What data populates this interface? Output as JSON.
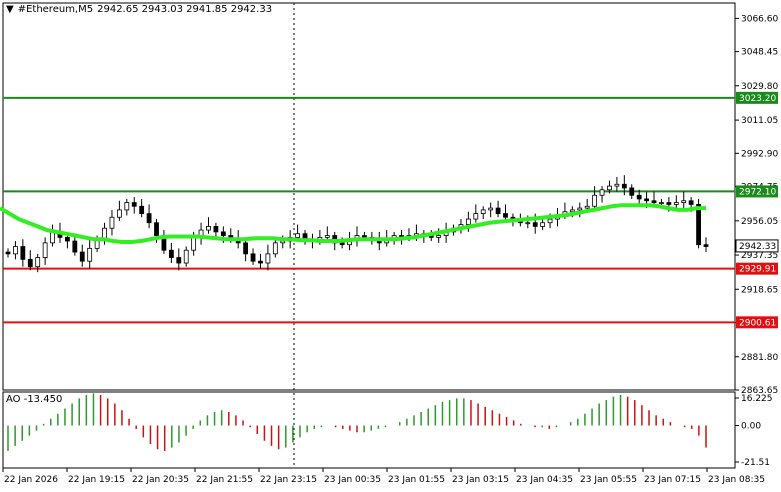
{
  "header": {
    "symbol": "#Ethereum,M5",
    "ohlc": "2942.65 2943.03 2941.85 2942.33",
    "menu_glyph": "▼"
  },
  "ao_panel": {
    "label": "AO -13.450"
  },
  "colors": {
    "background": "#ffffff",
    "grid": "#000000",
    "candle": "#000000",
    "ma_line": "#33ee22",
    "green_level": "#1a8a1a",
    "red_level": "#e01010",
    "ao_up": "#2c9a2c",
    "ao_down": "#cc1111",
    "price_tag_text": "#ffffff",
    "current_tag": "#ffffff"
  },
  "chart_data": {
    "type": "candlestick",
    "price_axis": {
      "ticks": [
        "3066.60",
        "3048.45",
        "3029.80",
        "3011.05",
        "2992.90",
        "2974.75",
        "2956.05",
        "2937.35",
        "2918.65",
        "2900.50",
        "2881.80",
        "2863.65"
      ],
      "range": [
        2863.65,
        3075
      ]
    },
    "levels": [
      {
        "value": 3023.2,
        "label": "3023.20",
        "color": "green"
      },
      {
        "value": 2972.1,
        "label": "2972.10",
        "color": "green"
      },
      {
        "value": 2929.91,
        "label": "2929.91",
        "color": "red"
      },
      {
        "value": 2900.61,
        "label": "2900.61",
        "color": "red"
      }
    ],
    "current_price": {
      "value": 2942.33,
      "label": "2942.33"
    },
    "time_axis": [
      "22 Jan 2026",
      "22 Jan 19:15",
      "22 Jan 20:35",
      "22 Jan 21:55",
      "22 Jan 23:15",
      "23 Jan 00:35",
      "23 Jan 01:55",
      "23 Jan 03:15",
      "23 Jan 04:35",
      "23 Jan 05:55",
      "23 Jan 07:15",
      "23 Jan 08:35"
    ],
    "close_series": [
      2938,
      2942,
      2935,
      2931,
      2936,
      2944,
      2950,
      2947,
      2945,
      2939,
      2934,
      2941,
      2946,
      2952,
      2958,
      2962,
      2966,
      2964,
      2960,
      2955,
      2948,
      2940,
      2936,
      2933,
      2940,
      2947,
      2951,
      2953,
      2950,
      2948,
      2946,
      2944,
      2938,
      2934,
      2933,
      2938,
      2944,
      2945,
      2947,
      2949,
      2946,
      2945,
      2947,
      2948,
      2944,
      2943,
      2946,
      2948,
      2947,
      2946,
      2944,
      2946,
      2948,
      2947,
      2948,
      2949,
      2948,
      2947,
      2948,
      2950,
      2952,
      2954,
      2957,
      2960,
      2962,
      2963,
      2960,
      2958,
      2957,
      2955,
      2955,
      2953,
      2955,
      2957,
      2959,
      2961,
      2962,
      2963,
      2964,
      2970,
      2973,
      2975,
      2976,
      2974,
      2970,
      2968,
      2967,
      2966,
      2966,
      2965,
      2966,
      2967,
      2965,
      2943,
      2942
    ],
    "ma_series": [
      2963,
      2960,
      2957,
      2955,
      2953,
      2951,
      2950,
      2949,
      2948,
      2947,
      2946,
      2946,
      2945,
      2944.5,
      2944.5,
      2945,
      2946,
      2947,
      2947.5,
      2947.5,
      2947.5,
      2947.5,
      2947,
      2946.5,
      2946,
      2946,
      2946,
      2946.5,
      2946.5,
      2946.5,
      2946,
      2946,
      2945.5,
      2945.5,
      2945,
      2945,
      2945,
      2945.5,
      2946,
      2946,
      2946,
      2946,
      2946,
      2946.5,
      2947,
      2948,
      2949,
      2950,
      2951,
      2952,
      2953,
      2954,
      2955,
      2955.5,
      2956,
      2956.5,
      2957,
      2957.5,
      2958,
      2958.5,
      2959,
      2960,
      2961,
      2962,
      2963,
      2964,
      2964.5,
      2964.5,
      2964.5,
      2964.5,
      2964,
      2963,
      2962,
      2962,
      2963,
      2963
    ],
    "ao_values": [
      -15,
      -12,
      -9,
      -6,
      -3,
      1,
      4,
      7,
      10,
      13,
      16,
      18,
      19,
      18,
      16,
      13,
      9,
      4,
      -2,
      -7,
      -11,
      -14,
      -15,
      -13,
      -10,
      -6,
      -2,
      3,
      6,
      8,
      9,
      8,
      6,
      3,
      -1,
      -5,
      -9,
      -12,
      -14,
      -13,
      -10,
      -7,
      -4,
      -2,
      -1,
      0,
      -1,
      -2,
      -3,
      -4,
      -4,
      -3,
      -2,
      -1,
      0,
      2,
      4,
      6,
      8,
      10,
      12,
      14,
      15,
      16,
      16,
      15,
      13,
      11,
      9,
      7,
      5,
      3,
      1,
      0,
      -1,
      -1,
      -2,
      -1,
      0,
      2,
      4,
      7,
      10,
      13,
      15,
      17,
      18,
      17,
      15,
      12,
      9,
      6,
      4,
      2,
      0,
      -1,
      -2,
      -6,
      -13
    ],
    "ao_axis": [
      "16.225",
      "0.00",
      "-21.51"
    ]
  }
}
